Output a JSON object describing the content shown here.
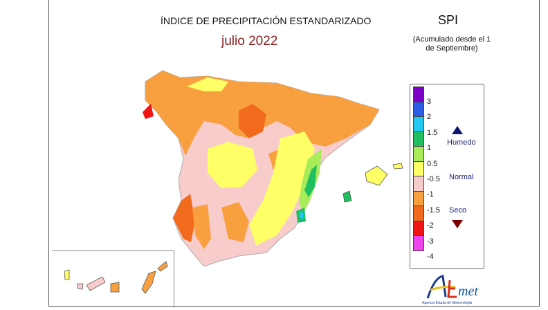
{
  "header": {
    "title": "ÍNDICE DE PRECIPITACIÓN ESTANDARIZADO",
    "period": "julio 2022",
    "index": "SPI",
    "accumulation_note": "(Acumulado desde el 1 de Septiembre)"
  },
  "legend": {
    "colors": [
      "#7b00c8",
      "#2b5ce6",
      "#22c8f0",
      "#20c060",
      "#a8ec5a",
      "#ffff66",
      "#f9cccc",
      "#f8a040",
      "#f26a1e",
      "#f01414",
      "#ee44ee"
    ],
    "ticks": [
      "3",
      "2",
      "1.5",
      "1",
      "0.5",
      "-0.5",
      "-1",
      "-1.5",
      "-2",
      "-3",
      "-4"
    ],
    "categories": {
      "wet": "Humedo",
      "normal": "Normal",
      "dry": "Seco"
    },
    "wet_icon": "triangle-up-icon",
    "dry_icon": "triangle-down-icon"
  },
  "logo": {
    "text": "AEMet",
    "subtitle": "Agencia Estatal de Meteorología"
  }
}
